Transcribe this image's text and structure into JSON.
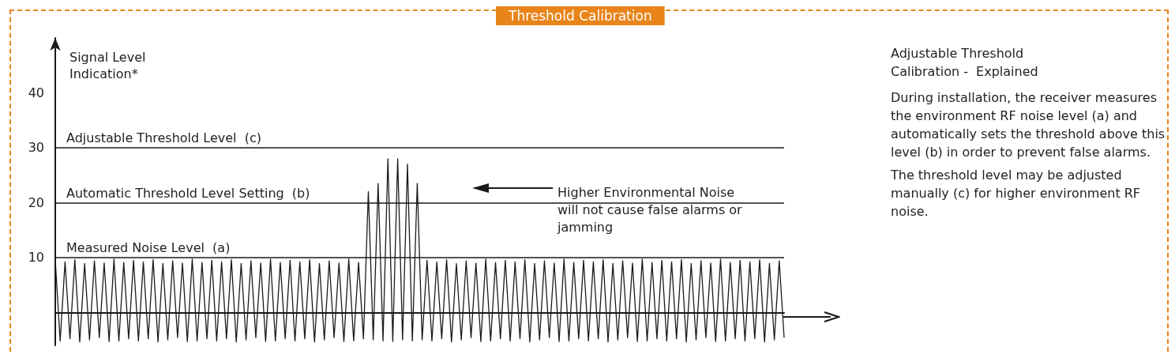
{
  "chart_data": {
    "type": "line",
    "title": "Threshold Calibration",
    "ylabel": "Signal Level Indication*",
    "categories": [
      null,
      null,
      null,
      null,
      null,
      null,
      null,
      null,
      null,
      null,
      null,
      null,
      null,
      null,
      null,
      null,
      null,
      null,
      null,
      null,
      null,
      null,
      null,
      null,
      null,
      null,
      null,
      null,
      null,
      null,
      null,
      null,
      null,
      null,
      null,
      null,
      null,
      null,
      null,
      null,
      null,
      null,
      null,
      null,
      null,
      null,
      null,
      null,
      null,
      null,
      null,
      null,
      null,
      null,
      null,
      null,
      null,
      null,
      null,
      null,
      null,
      null,
      null,
      null,
      null,
      null,
      null,
      null,
      null,
      null,
      null,
      null,
      null,
      null,
      null,
      null,
      null,
      null,
      null,
      null,
      null,
      null,
      null,
      null,
      null,
      null,
      null,
      null,
      null,
      null,
      null,
      null,
      null,
      null,
      null,
      null,
      null,
      null,
      null,
      null,
      null,
      null,
      null,
      null,
      null,
      null,
      null,
      null,
      null,
      null,
      null,
      null,
      null,
      null,
      null,
      null,
      null,
      null,
      null,
      null,
      null,
      null,
      null,
      null,
      null,
      null,
      null,
      null,
      null,
      null,
      null,
      null,
      null,
      null,
      null,
      null,
      null,
      null,
      null,
      null,
      null,
      null,
      null,
      null,
      null,
      null,
      null,
      null,
      null,
      null
    ],
    "series": [
      {
        "color": "#1a1a1a",
        "values": [
          9.5,
          -5.2,
          9.2,
          -4.8,
          9.6,
          -5.4,
          8.9,
          -5.0,
          9.4,
          -4.6,
          9.0,
          -5.3,
          9.7,
          -5.2,
          9.1,
          -4.8,
          9.5,
          -5.2,
          9.2,
          -4.8,
          9.6,
          -5.4,
          8.9,
          -5.0,
          9.4,
          -4.6,
          9.0,
          -5.3,
          9.7,
          -5.2,
          9.1,
          -4.8,
          9.5,
          -5.2,
          9.2,
          -4.8,
          9.6,
          -5.4,
          8.9,
          -5.0,
          9.4,
          -4.6,
          9.0,
          -5.3,
          9.7,
          -5.2,
          9.1,
          -4.8,
          9.5,
          -5.2,
          9.2,
          -4.8,
          9.6,
          -5.4,
          8.9,
          -5.0,
          9.4,
          -4.6,
          9.0,
          -5.3,
          9.7,
          -5.2,
          9.1,
          -4.8,
          22,
          -5.0,
          23.5,
          -5.2,
          28,
          -5.3,
          28,
          -5.0,
          27,
          -5.2,
          23.5,
          -5.0,
          9.5,
          -5.2,
          9.2,
          -4.8,
          9.6,
          -5.4,
          8.9,
          -5.0,
          9.4,
          -4.6,
          9.0,
          -5.3,
          9.7,
          -5.2,
          9.1,
          -4.8,
          9.5,
          -5.2,
          9.2,
          -4.8,
          9.6,
          -5.4,
          8.9,
          -5.0,
          9.4,
          -4.6,
          9.0,
          -5.3,
          9.7,
          -5.2,
          9.1,
          -4.8,
          9.5,
          -5.2,
          9.2,
          -4.8,
          9.6,
          -5.4,
          8.9,
          -5.0,
          9.4,
          -4.6,
          9.0,
          -5.3,
          9.7,
          -5.2,
          9.1,
          -4.8,
          9.5,
          -5.2,
          9.2,
          -4.8,
          9.6,
          -5.4,
          8.9,
          -5.0,
          9.4,
          -4.6,
          9.0,
          -5.3,
          9.7,
          -5.2,
          9.1,
          -4.8,
          9.5,
          -5.2,
          9.2,
          -4.8,
          9.6,
          -5.4,
          8.9,
          -5.0,
          9.4,
          -4.6
        ]
      }
    ],
    "ylim": [
      -6,
      50
    ],
    "yticks": [
      10,
      20,
      30,
      40
    ],
    "grid": false,
    "marker": "none",
    "line_style": "solid",
    "ref_lines": [
      {
        "axis": "y",
        "value": 10,
        "label": "Measured Noise Level  (a)",
        "color": "#1a1a1a"
      },
      {
        "axis": "y",
        "value": 20,
        "label": "Automatic Threshold Level Setting  (b)",
        "color": "#1a1a1a"
      },
      {
        "axis": "y",
        "value": 30,
        "label": "Adjustable Threshold Level  (c)",
        "color": "#1a1a1a"
      }
    ],
    "annotations": [
      "Higher Environmental Noise will not cause false alarms or jamming",
      "Adjustable Threshold Calibration -  Explained",
      "During installation, the receiver measures the environment RF noise level (a) and automatically sets the threshold above this level (b) in order to prevent false alarms.",
      "The threshold level may be adjusted manually (c) for higher environment RF noise."
    ]
  }
}
